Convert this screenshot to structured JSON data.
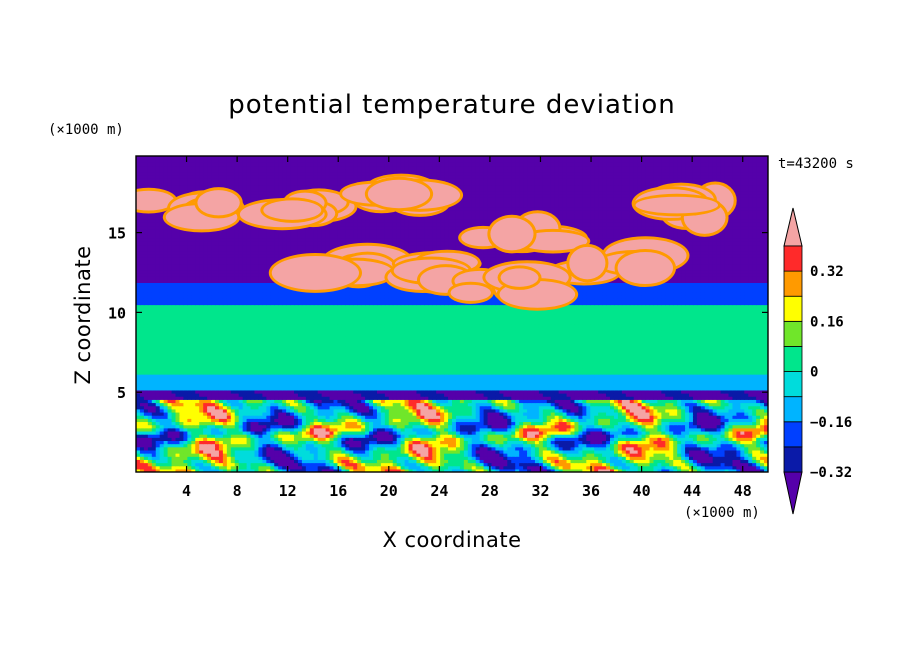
{
  "chart_data": {
    "type": "heatmap",
    "title": "potential temperature deviation",
    "xlabel": "X coordinate",
    "ylabel": "Z coordinate",
    "x_unit": "(×1000 m)",
    "y_unit": "(×1000 m)",
    "time_label": "t=43200 s",
    "xlim": [
      0,
      50
    ],
    "ylim": [
      0,
      19.8
    ],
    "x_ticks": [
      "4",
      "8",
      "12",
      "16",
      "20",
      "24",
      "28",
      "32",
      "36",
      "40",
      "44",
      "48"
    ],
    "y_ticks": [
      "5",
      "10",
      "15"
    ],
    "colorbar": {
      "tick_labels": [
        "0.32",
        "0.16",
        "0",
        "−0.16",
        "−0.32"
      ],
      "tick_values": [
        0.32,
        0.16,
        0,
        -0.16,
        -0.32
      ],
      "levels": [
        -0.4,
        -0.32,
        -0.24,
        -0.16,
        -0.08,
        0,
        0.08,
        0.16,
        0.24,
        0.32,
        0.4
      ],
      "colors": [
        "#5500aa",
        "#0a1aa8",
        "#0040ff",
        "#00b4ff",
        "#00dcdc",
        "#00e68c",
        "#70e62a",
        "#ffff00",
        "#ff9a00",
        "#ff2a2a",
        "#f4a4a4"
      ]
    },
    "layers": [
      {
        "z_range": [
          0,
          4.5
        ],
        "description_value": "turbulent mix -0.4 to 0.4"
      },
      {
        "z_range": [
          4.5,
          5.2
        ],
        "value": -0.33
      },
      {
        "z_range": [
          5.2,
          6.2
        ],
        "value": -0.12
      },
      {
        "z_range": [
          6.2,
          10.5
        ],
        "value": 0.03
      },
      {
        "z_range": [
          10.5,
          11.8
        ],
        "value": -0.2
      },
      {
        "z_range": [
          11.8,
          13.5
        ],
        "value": -0.36
      },
      {
        "z_range": [
          13.5,
          19.8
        ],
        "value": -0.4
      }
    ],
    "pink_clouds": [
      {
        "x": 4,
        "z": 16.5
      },
      {
        "x": 12,
        "z": 16.4
      },
      {
        "x": 20,
        "z": 17.4
      },
      {
        "x": 30,
        "z": 14.8
      },
      {
        "x": 38,
        "z": 13.1
      },
      {
        "x": 45,
        "z": 16.5
      },
      {
        "x": 16,
        "z": 12.7
      },
      {
        "x": 23,
        "z": 12.6
      },
      {
        "x": 29,
        "z": 11.7
      }
    ]
  }
}
